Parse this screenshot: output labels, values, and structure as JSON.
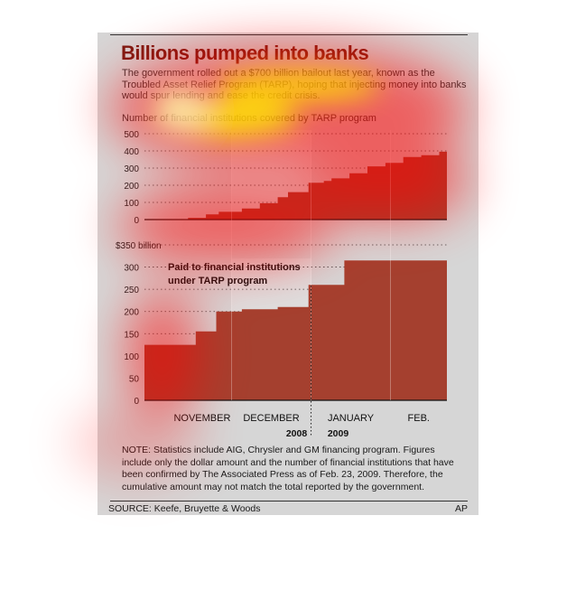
{
  "title": "Billions pumped into banks",
  "intro": "The government rolled out a $700 billion bailout last year, known as the Troubled Asset Relief Program (TARP), hoping that injecting money into banks would spur lending and ease the credit crisis.",
  "note": "NOTE: Statistics include AIG, Chrysler and GM financing program. Figures include only the dollar amount and the number of financial institutions that have been confirmed by The Associated Press as of Feb. 23, 2009. Therefore, the cumulative amount may not match the total reported by the government.",
  "source": "SOURCE: Keefe, Bruyette & Woods",
  "credit": "AP",
  "colors": {
    "fill": "#a5402f",
    "title": "#7a1b12",
    "panel": "#d6d6d6",
    "band": "#e3e3e3"
  },
  "months": [
    "NOVEMBER",
    "DECEMBER",
    "JANUARY",
    "FEB."
  ],
  "years": [
    "2008",
    "2009"
  ],
  "chart_data": [
    {
      "type": "area",
      "title": "Number of financial institutions covered by TARP program",
      "x_range": [
        "2008-10-28",
        "2009-02-23"
      ],
      "ylim": [
        0,
        500
      ],
      "yticks": [
        "0",
        "100",
        "200",
        "300",
        "400",
        "500"
      ],
      "grid": true,
      "series": [
        {
          "x": [
            "2008-10-28",
            "2008-11-14",
            "2008-11-21",
            "2008-11-26",
            "2008-12-05",
            "2008-12-12",
            "2008-12-19",
            "2008-12-23",
            "2008-12-31",
            "2009-01-06",
            "2009-01-09",
            "2009-01-16",
            "2009-01-23",
            "2009-01-30",
            "2009-02-06",
            "2009-02-13",
            "2009-02-20",
            "2009-02-23"
          ],
          "y": [
            0,
            10,
            30,
            45,
            65,
            95,
            130,
            160,
            215,
            225,
            240,
            270,
            310,
            330,
            365,
            375,
            395,
            420
          ]
        }
      ]
    },
    {
      "type": "area",
      "title": "Paid to financial institutions under TARP program",
      "x_range": [
        "2008-10-28",
        "2009-02-23"
      ],
      "ylim": [
        0,
        350
      ],
      "yticks": [
        "0",
        "50",
        "100",
        "150",
        "200",
        "250",
        "300",
        "$350 billion"
      ],
      "grid": true,
      "series": [
        {
          "x": [
            "2008-10-28",
            "2008-11-14",
            "2008-11-17",
            "2008-11-25",
            "2008-12-05",
            "2008-12-19",
            "2008-12-31",
            "2009-01-09",
            "2009-01-14",
            "2009-02-23"
          ],
          "y": [
            125,
            125,
            155,
            200,
            205,
            210,
            260,
            260,
            315,
            318
          ]
        }
      ]
    }
  ]
}
